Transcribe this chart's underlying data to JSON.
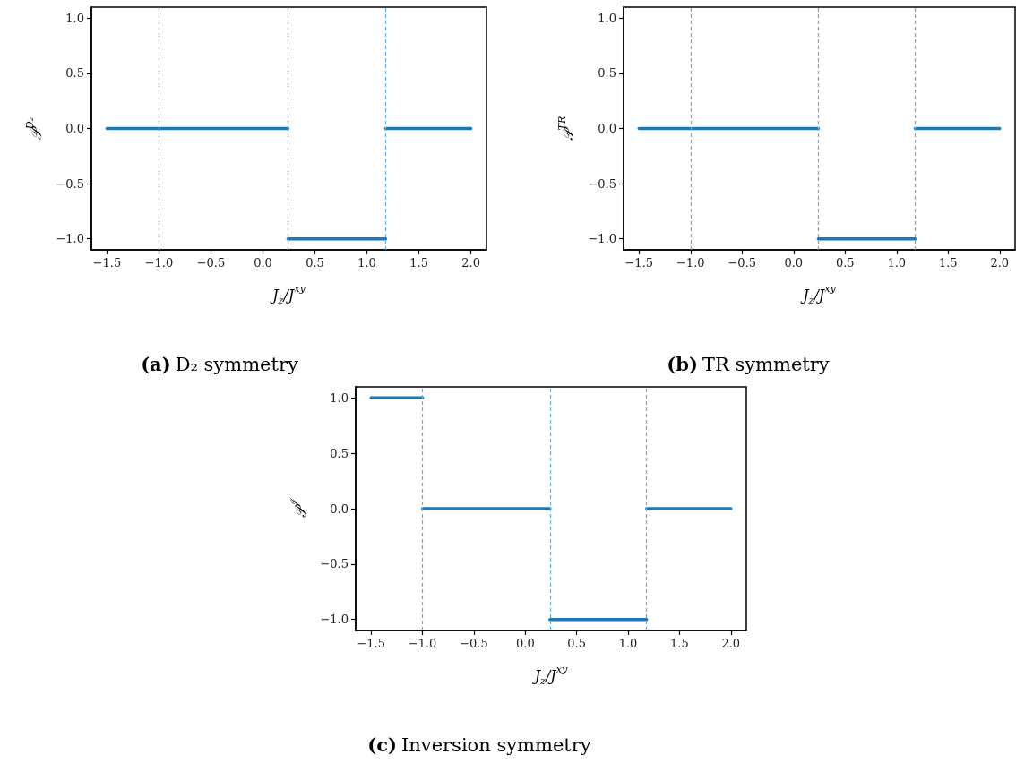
{
  "chart_data": [
    {
      "type": "line",
      "title": "(a) D₂ symmetry",
      "xlabel": "J$_{z}$/J$^{xy}$",
      "ylabel": "𝒫$^{D₂}$",
      "series": [
        {
          "color": "#1f77b4",
          "x": [
            -1.5,
            0.24
          ],
          "values": [
            0,
            0
          ]
        },
        {
          "color": "#1f77b4",
          "x": [
            0.24,
            1.18
          ],
          "values": [
            -1,
            -1
          ]
        },
        {
          "color": "#1f77b4",
          "x": [
            1.18,
            2.0
          ],
          "values": [
            0,
            0
          ]
        }
      ],
      "xlim": [
        -1.65,
        2.15
      ],
      "xticks": [
        {
          "value": -1.5,
          "label": "−1.5"
        },
        {
          "value": -1.0,
          "label": "−1.0"
        },
        {
          "value": -0.5,
          "label": "−0.5"
        },
        {
          "value": 0,
          "label": "0.0"
        },
        {
          "value": 0.5,
          "label": "0.5"
        },
        {
          "value": 1,
          "label": "1.0"
        },
        {
          "value": 1.5,
          "label": "1.5"
        },
        {
          "value": 2,
          "label": "2.0"
        }
      ],
      "ylim": [
        -1.1,
        1.1
      ],
      "yticks": [
        {
          "value": -1,
          "label": "−1.0"
        },
        {
          "value": -0.5,
          "label": "−0.5"
        },
        {
          "value": 0,
          "label": "0.0"
        },
        {
          "value": 0.5,
          "label": "0.5"
        },
        {
          "value": 1,
          "label": "1.0"
        }
      ],
      "ref_lines": [
        {
          "axis": "x",
          "value": -1.0,
          "color": "#5dade2",
          "line_style": "dashed"
        },
        {
          "axis": "x",
          "value": 0.24,
          "color": "#5dade2",
          "line_style": "dashed"
        },
        {
          "axis": "x",
          "value": 1.18,
          "color": "#5dade2",
          "line_style": "dashed"
        }
      ],
      "marker": "none",
      "line_style": "solid"
    },
    {
      "type": "line",
      "title": "(b) TR symmetry",
      "xlabel": "J$_{z}$/J$^{xy}$",
      "ylabel": "𝒫$^{TR}$",
      "series": [
        {
          "color": "#1f77b4",
          "x": [
            -1.5,
            0.24
          ],
          "values": [
            0,
            0
          ]
        },
        {
          "color": "#1f77b4",
          "x": [
            0.24,
            1.18
          ],
          "values": [
            -1,
            -1
          ]
        },
        {
          "color": "#1f77b4",
          "x": [
            1.18,
            2.0
          ],
          "values": [
            0,
            0
          ]
        }
      ],
      "xlim": [
        -1.65,
        2.15
      ],
      "xticks": [
        {
          "value": -1.5,
          "label": "−1.5"
        },
        {
          "value": -1.0,
          "label": "−1.0"
        },
        {
          "value": -0.5,
          "label": "−0.5"
        },
        {
          "value": 0,
          "label": "0.0"
        },
        {
          "value": 0.5,
          "label": "0.5"
        },
        {
          "value": 1,
          "label": "1.0"
        },
        {
          "value": 1.5,
          "label": "1.5"
        },
        {
          "value": 2,
          "label": "2.0"
        }
      ],
      "ylim": [
        -1.1,
        1.1
      ],
      "yticks": [
        {
          "value": -1,
          "label": "−1.0"
        },
        {
          "value": -0.5,
          "label": "−0.5"
        },
        {
          "value": 0,
          "label": "0.0"
        },
        {
          "value": 0.5,
          "label": "0.5"
        },
        {
          "value": 1,
          "label": "1.0"
        }
      ],
      "ref_lines": [
        {
          "axis": "x",
          "value": -1.0,
          "color": "#5dade2",
          "line_style": "dashed"
        },
        {
          "axis": "x",
          "value": 0.24,
          "color": "#5dade2",
          "line_style": "dashed"
        },
        {
          "axis": "x",
          "value": 1.18,
          "color": "#5dade2",
          "line_style": "dashed"
        }
      ],
      "marker": "none",
      "line_style": "solid"
    },
    {
      "type": "line",
      "title": "(c) Inversion symmetry",
      "xlabel": "J$_{z}$/J$^{xy}$",
      "ylabel": "𝒫$^{ℐ}$",
      "series": [
        {
          "color": "#1f77b4",
          "x": [
            -1.5,
            -1.0
          ],
          "values": [
            1,
            1
          ]
        },
        {
          "color": "#1f77b4",
          "x": [
            -1.0,
            0.24
          ],
          "values": [
            0,
            0
          ]
        },
        {
          "color": "#1f77b4",
          "x": [
            0.24,
            1.18
          ],
          "values": [
            -1,
            -1
          ]
        },
        {
          "color": "#1f77b4",
          "x": [
            1.18,
            2.0
          ],
          "values": [
            0,
            0
          ]
        }
      ],
      "xlim": [
        -1.65,
        2.15
      ],
      "xticks": [
        {
          "value": -1.5,
          "label": "−1.5"
        },
        {
          "value": -1.0,
          "label": "−1.0"
        },
        {
          "value": -0.5,
          "label": "−0.5"
        },
        {
          "value": 0,
          "label": "0.0"
        },
        {
          "value": 0.5,
          "label": "0.5"
        },
        {
          "value": 1,
          "label": "1.0"
        },
        {
          "value": 1.5,
          "label": "1.5"
        },
        {
          "value": 2,
          "label": "2.0"
        }
      ],
      "ylim": [
        -1.1,
        1.1
      ],
      "yticks": [
        {
          "value": -1,
          "label": "−1.0"
        },
        {
          "value": -0.5,
          "label": "−0.5"
        },
        {
          "value": 0,
          "label": "0.0"
        },
        {
          "value": 0.5,
          "label": "0.5"
        },
        {
          "value": 1,
          "label": "1.0"
        }
      ],
      "ref_lines": [
        {
          "axis": "x",
          "value": -1.0,
          "color": "#5dade2",
          "line_style": "dashed"
        },
        {
          "axis": "x",
          "value": 0.24,
          "color": "#5dade2",
          "line_style": "dashed"
        },
        {
          "axis": "x",
          "value": 1.18,
          "color": "#5dade2",
          "line_style": "dashed"
        }
      ],
      "marker": "none",
      "line_style": "solid"
    }
  ]
}
